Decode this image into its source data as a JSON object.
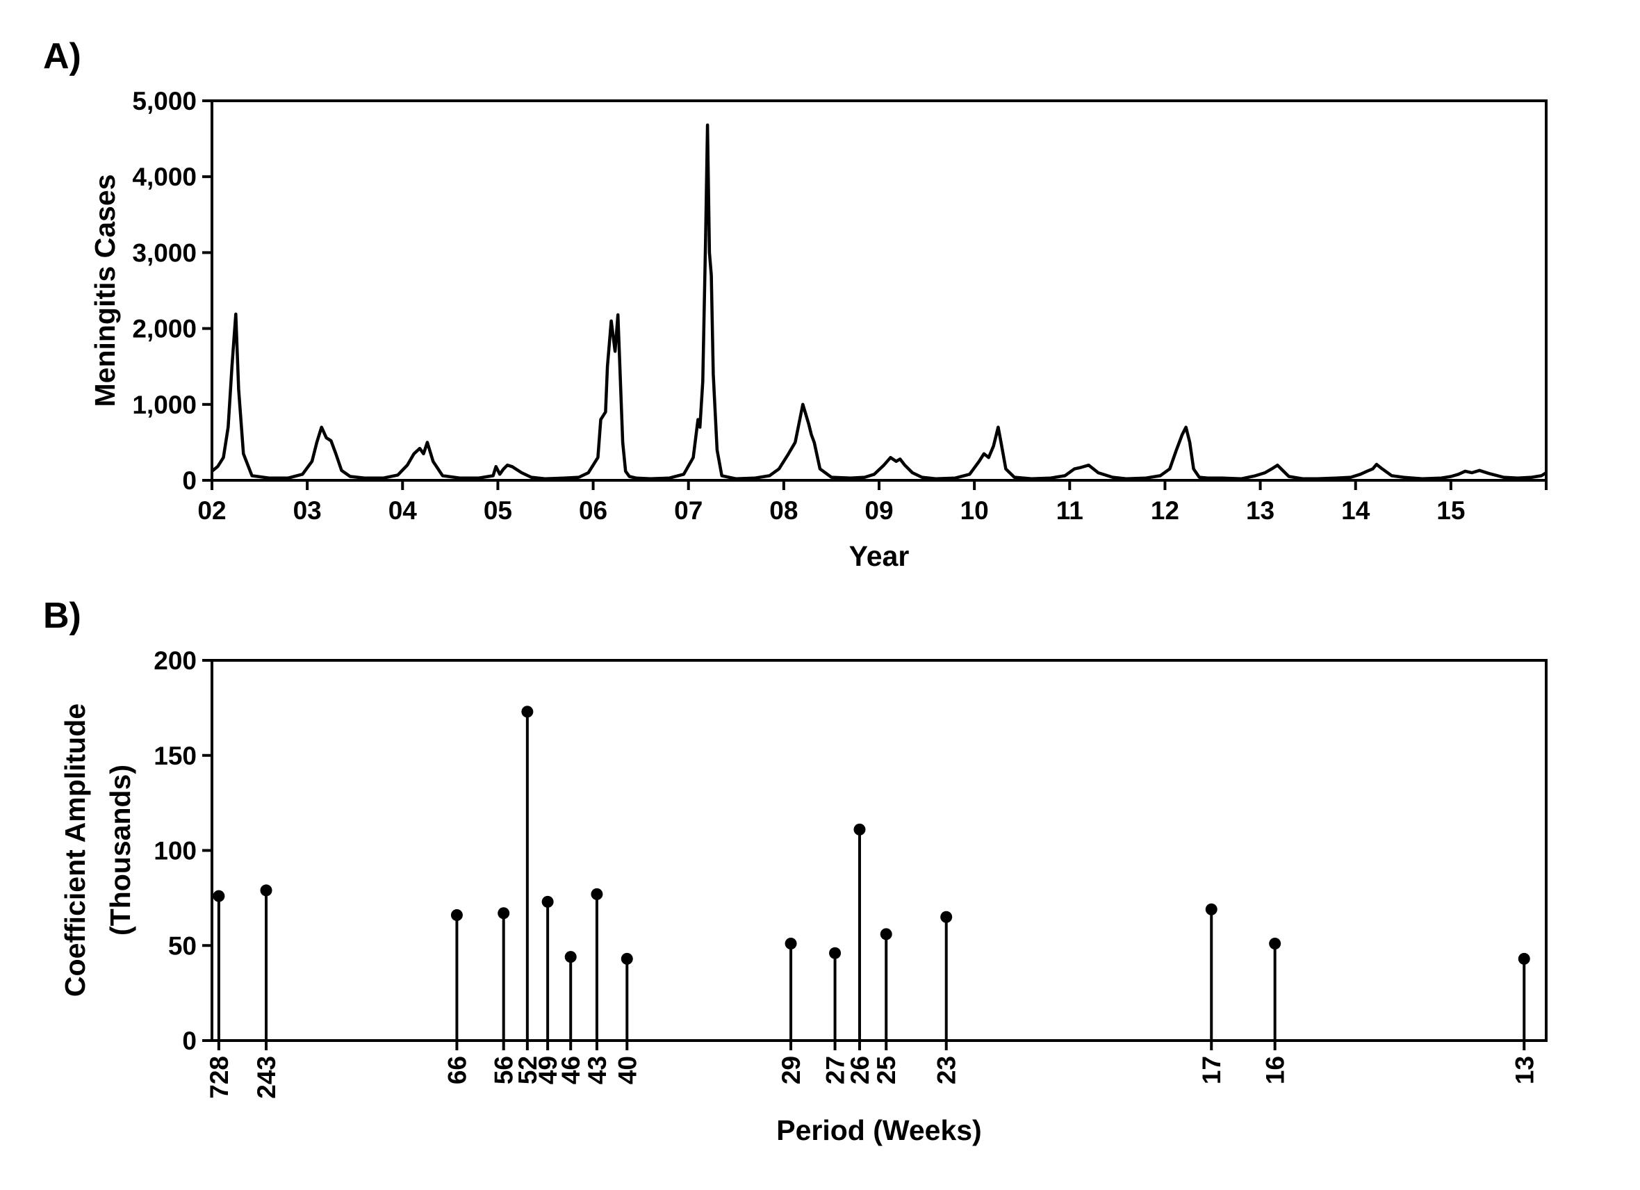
{
  "panel_labels": [
    "A)",
    "B)"
  ],
  "chart_data": [
    {
      "type": "line",
      "panel": "A)",
      "xlabel": "Year",
      "ylabel": "Meningitis Cases",
      "xticks": [
        "02",
        "03",
        "04",
        "05",
        "06",
        "07",
        "08",
        "09",
        "10",
        "11",
        "12",
        "13",
        "14",
        "15"
      ],
      "yticks": [
        "0",
        "1,000",
        "2,000",
        "3,000",
        "4,000",
        "5,000"
      ],
      "xlim": [
        2002,
        2016
      ],
      "ylim": [
        0,
        5000
      ],
      "grid": false,
      "series": [
        {
          "x": [
            2002.0,
            2002.06,
            2002.12,
            2002.17,
            2002.21,
            2002.25,
            2002.28,
            2002.33,
            2002.42,
            2002.6,
            2002.8,
            2002.95,
            2003.05,
            2003.1,
            2003.15,
            2003.2,
            2003.25,
            2003.3,
            2003.36,
            2003.45,
            2003.6,
            2003.8,
            2003.95,
            2004.05,
            2004.12,
            2004.18,
            2004.22,
            2004.26,
            2004.32,
            2004.42,
            2004.6,
            2004.8,
            2004.95,
            2004.98,
            2005.02,
            2005.06,
            2005.1,
            2005.15,
            2005.25,
            2005.35,
            2005.5,
            2005.7,
            2005.85,
            2005.95,
            2006.05,
            2006.08,
            2006.13,
            2006.15,
            2006.19,
            2006.23,
            2006.26,
            2006.28,
            2006.31,
            2006.34,
            2006.38,
            2006.45,
            2006.6,
            2006.8,
            2006.95,
            2007.05,
            2007.1,
            2007.12,
            2007.15,
            2007.18,
            2007.2,
            2007.22,
            2007.24,
            2007.26,
            2007.3,
            2007.35,
            2007.5,
            2007.7,
            2007.85,
            2007.95,
            2008.05,
            2008.12,
            2008.2,
            2008.26,
            2008.29,
            2008.32,
            2008.38,
            2008.5,
            2008.7,
            2008.85,
            2008.95,
            2009.05,
            2009.12,
            2009.18,
            2009.22,
            2009.27,
            2009.35,
            2009.45,
            2009.6,
            2009.8,
            2009.95,
            2010.05,
            2010.1,
            2010.15,
            2010.2,
            2010.25,
            2010.28,
            2010.33,
            2010.42,
            2010.6,
            2010.8,
            2010.95,
            2011.05,
            2011.12,
            2011.2,
            2011.3,
            2011.45,
            2011.6,
            2011.8,
            2011.95,
            2012.05,
            2012.12,
            2012.18,
            2012.22,
            2012.26,
            2012.3,
            2012.36,
            2012.45,
            2012.6,
            2012.8,
            2012.95,
            2013.05,
            2013.12,
            2013.18,
            2013.22,
            2013.3,
            2013.45,
            2013.6,
            2013.8,
            2013.95,
            2014.05,
            2014.12,
            2014.18,
            2014.22,
            2014.28,
            2014.38,
            2014.5,
            2014.7,
            2014.9,
            2015.0,
            2015.08,
            2015.15,
            2015.22,
            2015.3,
            2015.4,
            2015.55,
            2015.7,
            2015.85,
            2015.95,
            2016.0
          ],
          "y": [
            120,
            180,
            300,
            700,
            1500,
            2190,
            1200,
            350,
            60,
            30,
            30,
            80,
            250,
            500,
            700,
            560,
            520,
            350,
            130,
            50,
            30,
            30,
            70,
            200,
            350,
            420,
            350,
            500,
            250,
            60,
            30,
            30,
            60,
            180,
            80,
            150,
            200,
            180,
            100,
            40,
            20,
            30,
            40,
            100,
            300,
            800,
            900,
            1500,
            2100,
            1700,
            2180,
            1500,
            500,
            120,
            50,
            30,
            20,
            30,
            80,
            300,
            800,
            700,
            1300,
            3200,
            4680,
            3000,
            2700,
            1400,
            400,
            60,
            20,
            30,
            60,
            150,
            350,
            500,
            1000,
            750,
            600,
            500,
            150,
            40,
            30,
            40,
            80,
            200,
            300,
            250,
            280,
            200,
            100,
            40,
            20,
            30,
            80,
            250,
            350,
            300,
            450,
            700,
            500,
            150,
            40,
            20,
            30,
            60,
            150,
            170,
            200,
            100,
            40,
            20,
            30,
            60,
            150,
            400,
            600,
            700,
            500,
            150,
            40,
            30,
            30,
            20,
            60,
            100,
            150,
            200,
            150,
            50,
            20,
            20,
            30,
            40,
            80,
            120,
            150,
            210,
            150,
            60,
            40,
            20,
            30,
            50,
            80,
            120,
            100,
            130,
            90,
            40,
            30,
            40,
            60,
            100
          ]
        }
      ]
    },
    {
      "type": "stem",
      "panel": "B)",
      "xlabel": "Period (Weeks)",
      "ylabel": [
        "Coefficient Amplitude",
        "(Thousands)"
      ],
      "yticks": [
        "0",
        "50",
        "100",
        "150",
        "200"
      ],
      "ylim": [
        0,
        200
      ],
      "grid": false,
      "categories": [
        "728",
        "243",
        "66",
        "56",
        "52",
        "49",
        "46",
        "43",
        "40",
        "29",
        "27",
        "26",
        "25",
        "23",
        "17",
        "16",
        "13"
      ],
      "values": [
        76,
        79,
        66,
        67,
        173,
        73,
        44,
        77,
        43,
        51,
        46,
        111,
        56,
        65,
        69,
        51,
        43
      ]
    }
  ]
}
